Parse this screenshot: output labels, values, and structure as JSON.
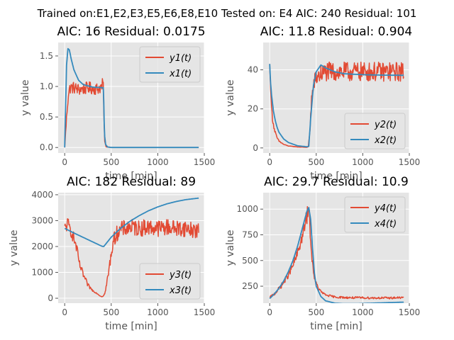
{
  "figure": {
    "suptitle": "Trained on:E1,E2,E3,E5,E6,E8,E10 Tested on: E4 AIC: 240 Residual: 101",
    "background": "#ffffff",
    "axes_background": "#e5e5e5",
    "grid_color": "#ffffff",
    "colors": {
      "measured": "#e24a33",
      "model": "#348abd"
    }
  },
  "chart_data": [
    {
      "type": "line",
      "title": "AIC: 16 Residual: 0.0175",
      "xlabel": "time [min]",
      "ylabel": "y value",
      "xlim": [
        -70,
        1500
      ],
      "ylim": [
        -0.09,
        1.72
      ],
      "xticks": [
        0,
        500,
        1000,
        1500
      ],
      "yticks": [
        0.0,
        0.5,
        1.0,
        1.5
      ],
      "ytick_labels": [
        "0.0",
        "0.5",
        "1.0",
        "1.5"
      ],
      "grid": true,
      "legend_loc": "top-right",
      "series": [
        {
          "name": "y1(t)",
          "role": "measured",
          "noisy": true,
          "x": [
            0,
            25,
            40,
            60,
            100,
            150,
            200,
            250,
            300,
            350,
            400,
            415,
            420,
            430,
            445,
            500,
            700,
            1000,
            1440
          ],
          "y": [
            0.0,
            0.6,
            0.88,
            0.98,
            0.98,
            0.95,
            0.96,
            0.98,
            0.97,
            0.96,
            1.0,
            1.05,
            0.6,
            0.1,
            0.01,
            0.0,
            0.0,
            0.0,
            0.0
          ],
          "noise": [
            0,
            0.08,
            0.1,
            0.1,
            0.1,
            0.1,
            0.1,
            0.1,
            0.1,
            0.1,
            0.1,
            0.15,
            0,
            0,
            0,
            0,
            0,
            0,
            0
          ]
        },
        {
          "name": "x1(t)",
          "role": "model",
          "x": [
            0,
            10,
            20,
            35,
            50,
            70,
            100,
            150,
            200,
            300,
            400,
            415,
            420,
            425,
            430,
            440,
            460,
            500,
            700,
            1000,
            1440
          ],
          "y": [
            0.0,
            0.7,
            1.35,
            1.62,
            1.6,
            1.45,
            1.27,
            1.1,
            1.03,
            0.99,
            0.98,
            0.98,
            0.75,
            0.4,
            0.18,
            0.05,
            0.01,
            0.0,
            0.0,
            0.0,
            0.0
          ]
        }
      ]
    },
    {
      "type": "line",
      "title": "AIC: 11.8 Residual: 0.904",
      "xlabel": "time [min]",
      "ylabel": "y value",
      "xlim": [
        -70,
        1500
      ],
      "ylim": [
        -2.6,
        54
      ],
      "xticks": [
        0,
        500,
        1000,
        1500
      ],
      "yticks": [
        0,
        20,
        40
      ],
      "ytick_labels": [
        "0",
        "20",
        "40"
      ],
      "grid": true,
      "legend_loc": "bottom-right",
      "series": [
        {
          "name": "y2(t)",
          "role": "measured",
          "noisy": true,
          "x": [
            0,
            15,
            30,
            50,
            75,
            100,
            150,
            200,
            300,
            400,
            415,
            430,
            450,
            480,
            520,
            560,
            600,
            700,
            800,
            900,
            1000,
            1100,
            1200,
            1300,
            1440
          ],
          "y": [
            43,
            24,
            15,
            9.5,
            5.5,
            3.5,
            1.8,
            1.0,
            0.5,
            0.3,
            0.5,
            8,
            25,
            34,
            37,
            38,
            39,
            39,
            39,
            39,
            39,
            39,
            39,
            39,
            39
          ],
          "noise": [
            0,
            1.5,
            1.2,
            1,
            0.6,
            0.4,
            0.2,
            0.1,
            0.1,
            0.1,
            0.3,
            2,
            4,
            4,
            5,
            5,
            5,
            5,
            5,
            5,
            5,
            5,
            5,
            5,
            5
          ]
        },
        {
          "name": "x2(t)",
          "role": "model",
          "x": [
            0,
            10,
            20,
            40,
            60,
            80,
            100,
            150,
            200,
            300,
            400,
            420,
            440,
            470,
            500,
            550,
            600,
            700,
            800,
            1000,
            1200,
            1440
          ],
          "y": [
            43,
            33,
            27,
            19,
            14,
            10.5,
            8,
            4.6,
            2.8,
            1.1,
            0.6,
            0.8,
            15,
            32,
            39,
            42.5,
            41,
            39,
            38,
            37.5,
            37.3,
            37.2
          ]
        }
      ]
    },
    {
      "type": "line",
      "title": "AIC: 182 Residual: 89",
      "xlabel": "time [min]",
      "ylabel": "y value",
      "xlim": [
        -70,
        1500
      ],
      "ylim": [
        -190,
        4080
      ],
      "xticks": [
        0,
        500,
        1000,
        1500
      ],
      "yticks": [
        0,
        1000,
        2000,
        3000,
        4000
      ],
      "ytick_labels": [
        "0",
        "1000",
        "2000",
        "3000",
        "4000"
      ],
      "grid": true,
      "legend_loc": "bottom-right",
      "series": [
        {
          "name": "y3(t)",
          "role": "measured",
          "noisy": true,
          "x": [
            0,
            25,
            50,
            80,
            100,
            130,
            160,
            200,
            250,
            300,
            350,
            380,
            400,
            420,
            440,
            480,
            520,
            560,
            600,
            700,
            800,
            900,
            1000,
            1100,
            1200,
            1300,
            1440
          ],
          "y": [
            2600,
            2900,
            2750,
            2500,
            2300,
            1900,
            1300,
            900,
            500,
            300,
            180,
            90,
            60,
            100,
            300,
            1200,
            2200,
            2500,
            2650,
            2750,
            2700,
            2750,
            2700,
            2750,
            2700,
            2700,
            2600
          ],
          "noise": [
            350,
            280,
            250,
            250,
            220,
            200,
            150,
            120,
            80,
            40,
            20,
            10,
            5,
            20,
            80,
            200,
            250,
            300,
            320,
            320,
            320,
            320,
            320,
            320,
            320,
            320,
            320
          ]
        },
        {
          "name": "x3(t)",
          "role": "model",
          "x": [
            0,
            100,
            200,
            300,
            400,
            420,
            500,
            600,
            700,
            800,
            900,
            1000,
            1100,
            1200,
            1300,
            1440
          ],
          "y": [
            2700,
            2520,
            2350,
            2180,
            2010,
            2000,
            2360,
            2700,
            2970,
            3190,
            3380,
            3530,
            3650,
            3740,
            3810,
            3870
          ]
        }
      ]
    },
    {
      "type": "line",
      "title": "AIC: 29.7 Residual: 10.9",
      "xlabel": "time [min]",
      "ylabel": "y value",
      "xlim": [
        -70,
        1500
      ],
      "ylim": [
        85,
        1160
      ],
      "xticks": [
        0,
        500,
        1000,
        1500
      ],
      "yticks": [
        250,
        500,
        750,
        1000
      ],
      "ytick_labels": [
        "250",
        "500",
        "750",
        "1000"
      ],
      "grid": true,
      "legend_loc": "top-right",
      "series": [
        {
          "name": "y4(t)",
          "role": "measured",
          "noisy": true,
          "x": [
            0,
            50,
            100,
            150,
            200,
            250,
            300,
            350,
            380,
            400,
            420,
            430,
            450,
            480,
            520,
            560,
            600,
            700,
            800,
            900,
            1000,
            1100,
            1200,
            1300,
            1440
          ],
          "y": [
            140,
            175,
            225,
            285,
            360,
            450,
            570,
            730,
            850,
            930,
            1000,
            850,
            550,
            330,
            230,
            190,
            165,
            145,
            140,
            138,
            138,
            136,
            136,
            136,
            140
          ],
          "noise": [
            10,
            15,
            20,
            25,
            30,
            35,
            45,
            55,
            70,
            80,
            90,
            60,
            30,
            20,
            15,
            12,
            10,
            10,
            10,
            10,
            10,
            10,
            10,
            10,
            10
          ]
        },
        {
          "name": "x4(t)",
          "role": "model",
          "x": [
            0,
            50,
            100,
            150,
            200,
            250,
            300,
            350,
            400,
            420,
            440,
            460,
            480,
            500,
            550,
            600,
            700,
            800,
            900,
            1000,
            1100,
            1200,
            1440
          ],
          "y": [
            130,
            175,
            230,
            300,
            390,
            500,
            640,
            810,
            980,
            1015,
            900,
            620,
            380,
            250,
            150,
            108,
            85,
            80,
            80,
            82,
            85,
            88,
            95
          ]
        }
      ]
    }
  ]
}
